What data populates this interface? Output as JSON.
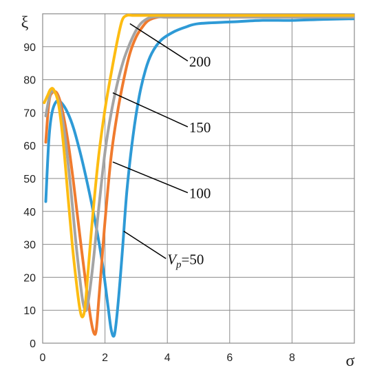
{
  "chart_data": {
    "type": "line",
    "title": "",
    "xlabel": "σ",
    "ylabel": "ξ",
    "xlim": [
      0,
      10
    ],
    "ylim": [
      0,
      100
    ],
    "x_ticks": [
      0,
      2,
      4,
      6,
      8
    ],
    "y_ticks": [
      0,
      10,
      20,
      30,
      40,
      50,
      60,
      70,
      80,
      90
    ],
    "grid": true,
    "legend": "none",
    "series": [
      {
        "color": "#2e9ad6",
        "x": [
          0.1,
          0.2,
          0.3,
          0.45,
          0.6,
          0.8,
          1.0,
          1.2,
          1.4,
          1.6,
          1.8,
          1.95,
          2.1,
          2.2,
          2.3,
          2.4,
          2.55,
          2.7,
          2.9,
          3.1,
          3.3,
          3.5,
          3.8,
          4.2,
          4.6,
          5.0,
          6.0,
          7.0,
          8.0,
          9.0,
          10.0
        ],
        "y": [
          43,
          62,
          70,
          73.5,
          73,
          70,
          65,
          58,
          50,
          41,
          31,
          22,
          11,
          4,
          2.5,
          10,
          27,
          46,
          63,
          75,
          83,
          88,
          92,
          94.5,
          96,
          97,
          97.5,
          98,
          98,
          98.3,
          98.5
        ]
      },
      {
        "color": "#f07b2e",
        "x": [
          0.1,
          0.2,
          0.3,
          0.45,
          0.6,
          0.8,
          1.0,
          1.2,
          1.4,
          1.55,
          1.65,
          1.72,
          1.8,
          1.9,
          2.0,
          2.2,
          2.4,
          2.6,
          2.8,
          3.0,
          3.2,
          3.4,
          3.7,
          4.0,
          5.0,
          6.0,
          8.0,
          10.0
        ],
        "y": [
          61,
          73,
          76,
          76,
          72,
          62,
          48,
          32,
          17,
          7,
          3,
          4,
          13,
          25,
          37,
          57,
          70,
          80,
          88,
          93,
          96,
          98,
          99,
          99,
          99,
          99,
          99,
          99
        ]
      },
      {
        "color": "#a4a4a4",
        "x": [
          0.1,
          0.2,
          0.3,
          0.5,
          0.7,
          0.9,
          1.05,
          1.2,
          1.3,
          1.4,
          1.5,
          1.65,
          1.8,
          2.0,
          2.2,
          2.4,
          2.6,
          2.8,
          3.0,
          3.2,
          3.5,
          4.0,
          5.0,
          6.0,
          8.0,
          10.0
        ],
        "y": [
          69,
          74,
          76.5,
          74,
          64,
          47,
          32,
          19,
          12,
          10,
          15,
          27,
          41,
          58,
          70,
          79,
          86,
          91,
          95,
          97.5,
          99,
          99,
          99,
          99,
          99,
          99
        ]
      },
      {
        "color": "#fdbc12",
        "x": [
          0.05,
          0.15,
          0.25,
          0.35,
          0.5,
          0.65,
          0.8,
          0.95,
          1.1,
          1.2,
          1.28,
          1.36,
          1.45,
          1.6,
          1.8,
          2.0,
          2.2,
          2.4,
          2.55,
          2.7,
          2.9,
          3.1,
          3.5,
          4.0,
          5.0,
          6.0,
          8.0,
          10.0
        ],
        "y": [
          73,
          75,
          77,
          77,
          73,
          62,
          46,
          30,
          17,
          10,
          8,
          11,
          21,
          38,
          57,
          71,
          82,
          92,
          98,
          99.5,
          99.5,
          99.5,
          99.5,
          99.5,
          99.5,
          99.5,
          99.5,
          99.5
        ]
      }
    ],
    "annotations": [
      {
        "text": "200",
        "x": 4.7,
        "y": 84,
        "point_x": 2.8,
        "point_y": 97
      },
      {
        "text": "150",
        "x": 4.7,
        "y": 64,
        "point_x": 2.25,
        "point_y": 76
      },
      {
        "text": "100",
        "x": 4.7,
        "y": 44,
        "point_x": 2.25,
        "point_y": 55
      },
      {
        "text": "=50",
        "prefix": "V",
        "sub": "p",
        "x": 4.0,
        "y": 24,
        "point_x": 2.6,
        "point_y": 34
      }
    ]
  }
}
